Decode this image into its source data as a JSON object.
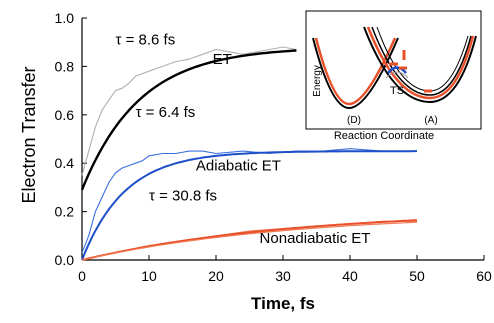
{
  "chart_data": {
    "type": "line",
    "xlabel": "Time, fs",
    "ylabel": "Electron Transfer",
    "xlim": [
      0,
      60
    ],
    "ylim": [
      0,
      1.0
    ],
    "xticks": [
      "0",
      "10",
      "20",
      "30",
      "40",
      "50",
      "60"
    ],
    "yticks": [
      "0.0",
      "0.2",
      "0.4",
      "0.6",
      "0.8",
      "1.0"
    ],
    "grid": false,
    "legend": "none",
    "series": [
      {
        "name": "ET",
        "color": "#000000",
        "fit": {
          "y0": 0.29,
          "yinf": 0.88,
          "tau": 8.6,
          "tmax": 32
        },
        "raw_color": "#b0b0b0",
        "raw": [
          [
            0,
            0.35
          ],
          [
            1,
            0.45
          ],
          [
            2,
            0.55
          ],
          [
            3,
            0.62
          ],
          [
            4,
            0.66
          ],
          [
            5,
            0.7
          ],
          [
            6,
            0.71
          ],
          [
            7,
            0.73
          ],
          [
            8,
            0.76
          ],
          [
            10,
            0.78
          ],
          [
            12,
            0.8
          ],
          [
            14,
            0.82
          ],
          [
            16,
            0.83
          ],
          [
            18,
            0.85
          ],
          [
            20,
            0.87
          ],
          [
            22,
            0.86
          ],
          [
            24,
            0.85
          ],
          [
            26,
            0.86
          ],
          [
            28,
            0.87
          ],
          [
            30,
            0.88
          ],
          [
            32,
            0.87
          ]
        ]
      },
      {
        "name": "Adiabatic ET",
        "color": "#1f4fc8",
        "fit": {
          "y0": 0.0,
          "yinf": 0.45,
          "tau": 6.4,
          "tmax": 50
        },
        "raw_color": "#3b6fe0",
        "raw": [
          [
            0,
            0.03
          ],
          [
            1,
            0.1
          ],
          [
            2,
            0.2
          ],
          [
            3,
            0.26
          ],
          [
            4,
            0.32
          ],
          [
            5,
            0.36
          ],
          [
            6,
            0.38
          ],
          [
            7,
            0.39
          ],
          [
            8,
            0.4
          ],
          [
            9,
            0.41
          ],
          [
            10,
            0.43
          ],
          [
            12,
            0.44
          ],
          [
            14,
            0.44
          ],
          [
            16,
            0.45
          ],
          [
            18,
            0.45
          ],
          [
            20,
            0.44
          ],
          [
            24,
            0.45
          ],
          [
            28,
            0.44
          ],
          [
            32,
            0.45
          ],
          [
            36,
            0.45
          ],
          [
            40,
            0.46
          ],
          [
            45,
            0.45
          ],
          [
            50,
            0.45
          ]
        ]
      },
      {
        "name": "Nonadiabatic ET",
        "color": "#e8502a",
        "fit": {
          "y0": 0.0,
          "yinf": 0.205,
          "tau": 30.8,
          "tmax": 50
        },
        "raw_color": "#f07a55",
        "raw": [
          [
            0,
            0.0
          ],
          [
            5,
            0.03
          ],
          [
            10,
            0.06
          ],
          [
            15,
            0.08
          ],
          [
            20,
            0.1
          ],
          [
            25,
            0.12
          ],
          [
            30,
            0.13
          ],
          [
            35,
            0.14
          ],
          [
            40,
            0.15
          ],
          [
            45,
            0.16
          ],
          [
            50,
            0.16
          ]
        ]
      }
    ],
    "annotations": [
      {
        "id": "tau-et",
        "text": "τ  =  8.6 fs",
        "x": 5,
        "y": 0.89
      },
      {
        "id": "et",
        "text": "ET",
        "x": 19.5,
        "y": 0.81
      },
      {
        "id": "tau-ad",
        "text": "τ  =  6.4 fs",
        "x": 8,
        "y": 0.59
      },
      {
        "id": "ad",
        "text": "Adiabatic ET",
        "x": 17,
        "y": 0.37
      },
      {
        "id": "tau-non",
        "text": "τ = 30.8 fs",
        "x": 10,
        "y": 0.245
      },
      {
        "id": "non",
        "text": "Nonadiabatic ET",
        "x": 26.5,
        "y": 0.07
      }
    ]
  },
  "inset": {
    "ylabel": "Energy",
    "xlabel": "Reaction Coordinate",
    "labels": {
      "donor": "(D)",
      "acceptor": "(A)",
      "ts": "TS"
    }
  }
}
